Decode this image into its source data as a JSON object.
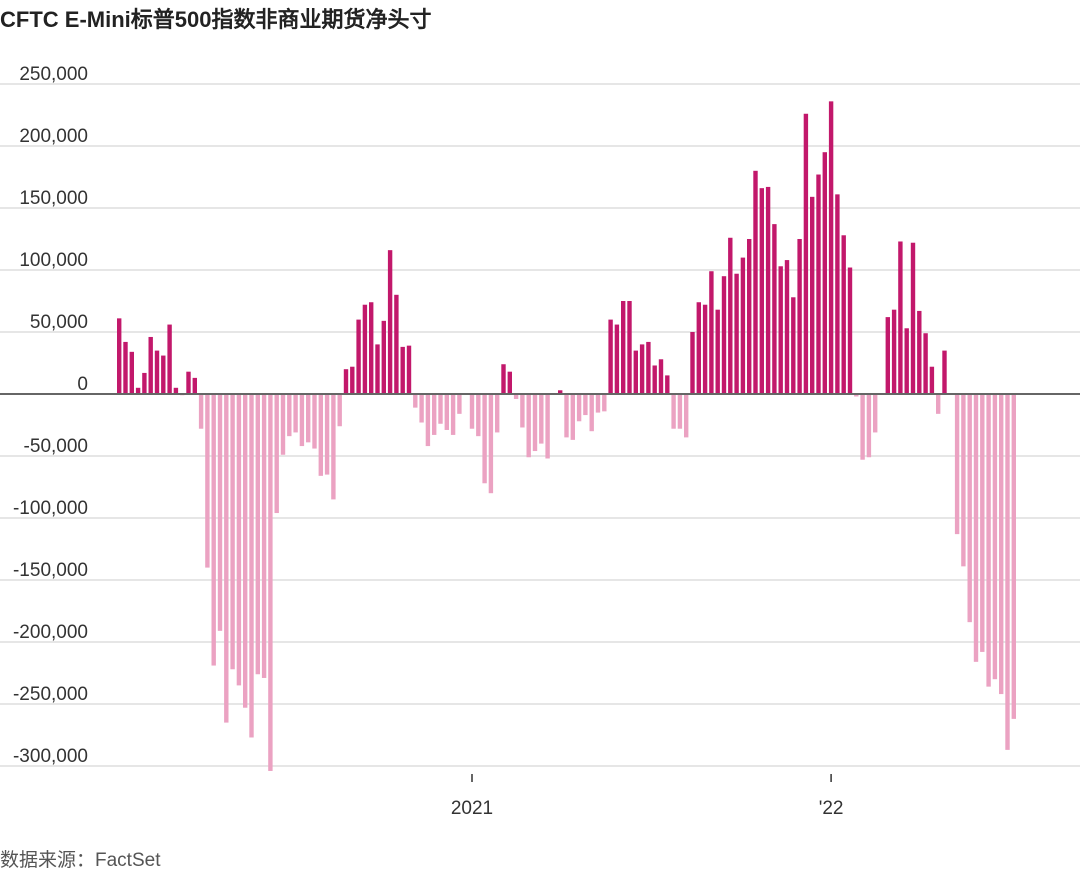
{
  "title": "CFTC E-Mini标普500指数非商业期货净头寸",
  "source": "数据来源：FactSet",
  "chart_data": {
    "type": "bar",
    "title": "CFTC E-Mini标普500指数非商业期货净头寸",
    "xlabel": "",
    "ylabel": "",
    "ylim": [
      -300000,
      250000
    ],
    "y_ticks": [
      {
        "value": 250000,
        "label": "250,000"
      },
      {
        "value": 200000,
        "label": "200,000"
      },
      {
        "value": 150000,
        "label": "150,000"
      },
      {
        "value": 100000,
        "label": "100,000"
      },
      {
        "value": 50000,
        "label": "50,000"
      },
      {
        "value": 0,
        "label": "0"
      },
      {
        "value": -50000,
        "label": "-50,000"
      },
      {
        "value": -100000,
        "label": "-100,000"
      },
      {
        "value": -150000,
        "label": "-150,000"
      },
      {
        "value": -200000,
        "label": "-200,000"
      },
      {
        "value": -250000,
        "label": "-250,000"
      },
      {
        "value": -300000,
        "label": "-300,000"
      }
    ],
    "x_ticks": [
      {
        "index": 56,
        "label": "2021"
      },
      {
        "index": 113,
        "label": "'22"
      }
    ],
    "grid": true,
    "colors": {
      "positive": "#c2186b",
      "negative": "#eba2c2",
      "grid": "#e6e6e6",
      "zero": "#666666"
    },
    "values": [
      61000,
      42000,
      34000,
      5000,
      17000,
      46000,
      35000,
      31000,
      56000,
      5000,
      -1000,
      18000,
      13000,
      -28000,
      -140000,
      -219000,
      -191000,
      -265000,
      -222000,
      -235000,
      -253000,
      -277000,
      -226000,
      -229000,
      -304000,
      -96000,
      -49000,
      -34000,
      -31000,
      -42000,
      -39000,
      -44000,
      -66000,
      -65000,
      -85000,
      -26000,
      20000,
      22000,
      60000,
      72000,
      74000,
      40000,
      59000,
      116000,
      80000,
      38000,
      39000,
      -11000,
      -23000,
      -42000,
      -33000,
      -24000,
      -29000,
      -33000,
      -16000,
      0,
      -28000,
      -34000,
      -72000,
      -80000,
      -31000,
      24000,
      18000,
      -4000,
      -27000,
      -51000,
      -46000,
      -40000,
      -52000,
      0,
      3000,
      -35000,
      -37000,
      -22000,
      -17000,
      -30000,
      -15000,
      -14000,
      60000,
      56000,
      75000,
      75000,
      35000,
      40000,
      42000,
      23000,
      28000,
      15000,
      -28000,
      -28000,
      -35000,
      50000,
      74000,
      72000,
      99000,
      68000,
      95000,
      126000,
      97000,
      110000,
      125000,
      180000,
      166000,
      167000,
      137000,
      103000,
      108000,
      78000,
      125000,
      226000,
      159000,
      177000,
      195000,
      236000,
      161000,
      128000,
      102000,
      -2000,
      -53000,
      -51000,
      -31000,
      0,
      62000,
      68000,
      123000,
      53000,
      122000,
      67000,
      49000,
      22000,
      -16000,
      35000,
      0,
      -113000,
      -139000,
      -184000,
      -216000,
      -208000,
      -236000,
      -230000,
      -242000,
      -287000,
      -262000
    ]
  }
}
